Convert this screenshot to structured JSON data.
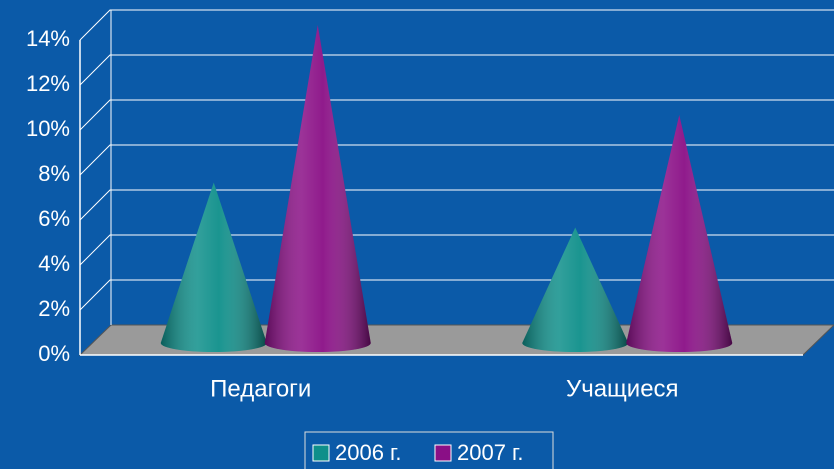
{
  "chart_data": {
    "type": "cone",
    "categories": [
      "Педагоги",
      "Учащиеся"
    ],
    "series": [
      {
        "name": "2006 г.",
        "color": "#0e8f8a",
        "values": [
          7,
          5
        ]
      },
      {
        "name": "2007 г.",
        "color": "#8a0f86",
        "values": [
          14,
          10
        ]
      }
    ],
    "ylim": [
      0,
      14
    ],
    "yticks": [
      {
        "value": 0,
        "label": "0%"
      },
      {
        "value": 2,
        "label": "2%"
      },
      {
        "value": 4,
        "label": "4%"
      },
      {
        "value": 6,
        "label": "6%"
      },
      {
        "value": 8,
        "label": "8%"
      },
      {
        "value": 10,
        "label": "10%"
      },
      {
        "value": 12,
        "label": "12%"
      },
      {
        "value": 14,
        "label": "14%"
      }
    ],
    "grid": true,
    "legend": "bottom"
  }
}
